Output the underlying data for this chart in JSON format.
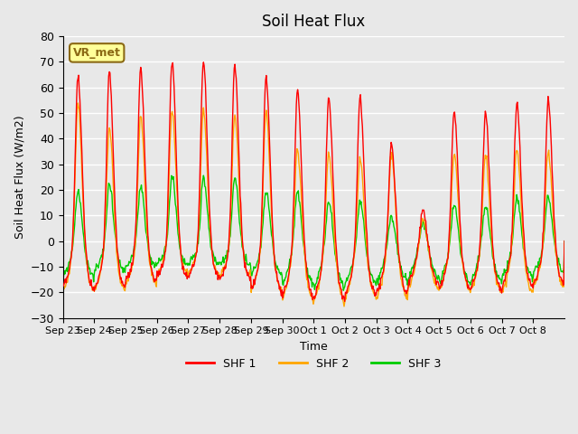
{
  "title": "Soil Heat Flux",
  "ylabel": "Soil Heat Flux (W/m2)",
  "xlabel": "Time",
  "ylim": [
    -30,
    80
  ],
  "background_color": "#e8e8e8",
  "plot_bg_color": "#e8e8e8",
  "grid_color": "#ffffff",
  "shf1_color": "#ff0000",
  "shf2_color": "#ffa500",
  "shf3_color": "#00cc00",
  "legend_label1": "SHF 1",
  "legend_label2": "SHF 2",
  "legend_label3": "SHF 3",
  "watermark": "VR_met",
  "x_tick_labels": [
    "Sep 23",
    "Sep 24",
    "Sep 25",
    "Sep 26",
    "Sep 27",
    "Sep 28",
    "Sep 29",
    "Sep 30",
    "Oct 1",
    "Oct 2",
    "Oct 3",
    "Oct 4",
    "Oct 5",
    "Oct 6",
    "Oct 7",
    "Oct 8"
  ],
  "yticks": [
    -30,
    -20,
    -10,
    0,
    10,
    20,
    30,
    40,
    50,
    60,
    70,
    80
  ],
  "shf1_peaks": [
    65,
    67,
    68,
    71,
    71,
    70,
    65,
    60,
    57,
    57,
    39,
    13,
    52,
    51,
    55,
    56
  ],
  "shf1_nights": [
    -20,
    -20,
    -17,
    -15,
    -15,
    -16,
    -21,
    -23,
    -24,
    -23,
    -22,
    -18,
    -20,
    -20,
    -19,
    -18
  ],
  "shf2_peaks": [
    55,
    45,
    50,
    52,
    52,
    50,
    52,
    37,
    35,
    33,
    35,
    10,
    35,
    35,
    37,
    36
  ],
  "shf2_nights": [
    -21,
    -21,
    -18,
    -14,
    -14,
    -15,
    -21,
    -25,
    -26,
    -24,
    -24,
    -20,
    -21,
    -21,
    -22,
    -19
  ],
  "shf3_peaks": [
    20,
    23,
    22,
    26,
    25,
    25,
    20,
    20,
    16,
    16,
    10,
    8,
    15,
    15,
    18,
    18
  ],
  "shf3_nights": [
    -15,
    -13,
    -11,
    -10,
    -10,
    -10,
    -14,
    -18,
    -20,
    -18,
    -17,
    -16,
    -17,
    -17,
    -15,
    -13
  ]
}
